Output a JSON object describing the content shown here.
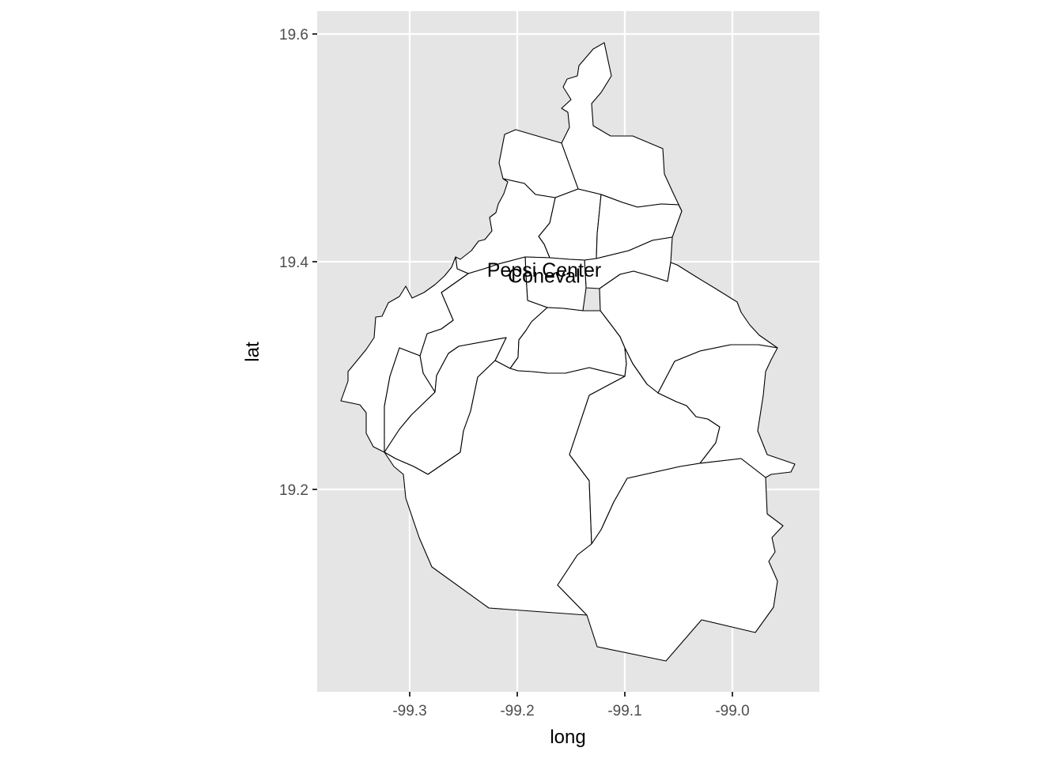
{
  "chart_data": {
    "type": "map",
    "xlabel": "long",
    "ylabel": "lat",
    "xlim": [
      -99.385,
      -98.92
    ],
    "ylim": [
      19.04,
      19.62
    ],
    "x_ticks": [
      {
        "value": -99.3,
        "label": "-99.3"
      },
      {
        "value": -99.2,
        "label": "-99.2"
      },
      {
        "value": -99.1,
        "label": "-99.1"
      },
      {
        "value": -99.0,
        "label": "-99.0"
      }
    ],
    "y_ticks": [
      {
        "value": 19.2,
        "label": "19.2"
      },
      {
        "value": 19.4,
        "label": "19.4"
      },
      {
        "value": 19.6,
        "label": "19.6"
      }
    ],
    "grid": true,
    "panel_color": "#e5e5e5",
    "region_fill": "#ffffff",
    "region_stroke": "#000000",
    "labels": [
      {
        "text": "Pepsi Center",
        "long": -99.175,
        "lat": 19.393
      },
      {
        "text": "Coneval",
        "long": -99.175,
        "lat": 19.388
      }
    ]
  }
}
